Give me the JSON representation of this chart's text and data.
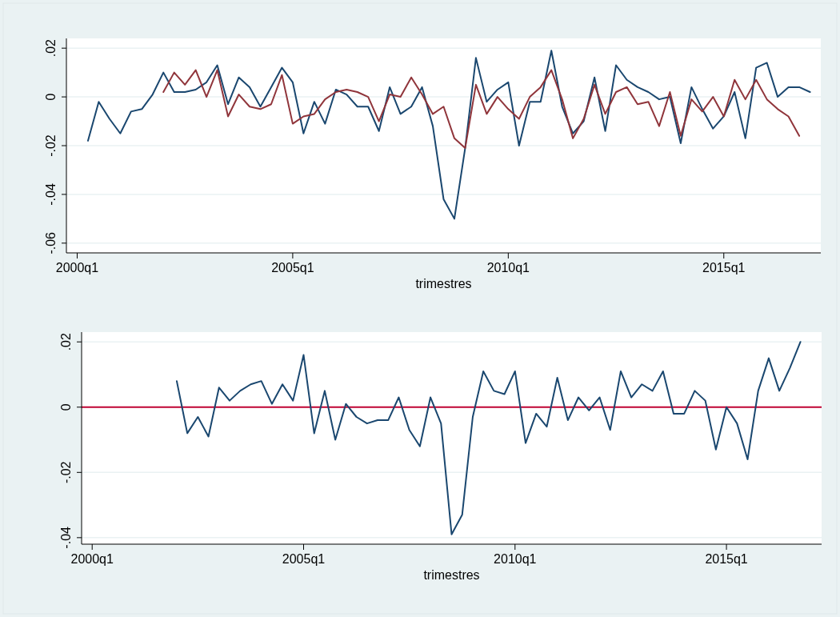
{
  "chart_data": [
    {
      "type": "line",
      "xlabel": "trimestres",
      "grid": "y",
      "categories": [
        "2000q1",
        null,
        null,
        null,
        null,
        null,
        null,
        null,
        null,
        null,
        null,
        null,
        null,
        null,
        null,
        null,
        null,
        null,
        null,
        null,
        "2005q1",
        null,
        null,
        null,
        null,
        null,
        null,
        null,
        null,
        null,
        null,
        null,
        null,
        null,
        null,
        null,
        null,
        null,
        null,
        null,
        "2010q1",
        null,
        null,
        null,
        null,
        null,
        null,
        null,
        null,
        null,
        null,
        null,
        null,
        null,
        null,
        null,
        null,
        null,
        null,
        null,
        "2015q1",
        null,
        null,
        null,
        null,
        null,
        null,
        null,
        null
      ],
      "ylim": [
        -0.064,
        0.024
      ],
      "yticks": [
        {
          "value": -0.06,
          "label": "-.06"
        },
        {
          "value": -0.04,
          "label": "-.04"
        },
        {
          "value": -0.02,
          "label": "-.02"
        },
        {
          "value": 0,
          "label": "0"
        },
        {
          "value": 0.02,
          "label": ".02"
        }
      ],
      "series": [
        {
          "color": "#1a476f",
          "values": [
            null,
            -0.018,
            -0.002,
            -0.009,
            -0.015,
            -0.006,
            -0.005,
            0.001,
            0.01,
            0.002,
            0.002,
            0.003,
            0.006,
            0.013,
            -0.003,
            0.008,
            0.004,
            -0.004,
            0.004,
            0.012,
            0.006,
            -0.015,
            -0.002,
            -0.011,
            0.003,
            0.001,
            -0.004,
            -0.004,
            -0.014,
            0.004,
            -0.007,
            -0.004,
            0.004,
            -0.012,
            -0.042,
            -0.05,
            -0.021,
            0.016,
            -0.002,
            0.003,
            0.006,
            -0.02,
            -0.002,
            -0.002,
            0.019,
            -0.004,
            -0.015,
            -0.01,
            0.008,
            -0.014,
            0.013,
            0.007,
            0.004,
            0.002,
            -0.001,
            0.0,
            -0.019,
            0.004,
            -0.005,
            -0.013,
            -0.008,
            0.002,
            -0.017,
            0.012,
            0.014,
            0.0,
            0.004,
            0.004,
            0.002
          ]
        },
        {
          "color": "#90353b",
          "values": [
            null,
            null,
            null,
            null,
            null,
            null,
            null,
            null,
            0.002,
            0.01,
            0.005,
            0.011,
            0.0,
            0.011,
            -0.008,
            0.001,
            -0.004,
            -0.005,
            -0.003,
            0.009,
            -0.011,
            -0.008,
            -0.007,
            -0.001,
            0.002,
            0.003,
            0.002,
            0.0,
            -0.01,
            0.001,
            0.0,
            0.008,
            0.001,
            -0.007,
            -0.004,
            -0.017,
            -0.021,
            0.005,
            -0.007,
            0.0,
            -0.005,
            -0.009,
            0.0,
            0.004,
            0.011,
            -0.001,
            -0.017,
            -0.009,
            0.005,
            -0.007,
            0.002,
            0.004,
            -0.003,
            -0.002,
            -0.012,
            0.002,
            -0.016,
            -0.001,
            -0.006,
            0.0,
            -0.008,
            0.007,
            -0.001,
            0.007,
            -0.001,
            -0.005,
            -0.008,
            -0.016,
            null
          ]
        }
      ]
    },
    {
      "type": "line",
      "xlabel": "trimestres",
      "grid": "y",
      "categories": [
        "2000q1",
        null,
        null,
        null,
        null,
        null,
        null,
        null,
        null,
        null,
        null,
        null,
        null,
        null,
        null,
        null,
        null,
        null,
        null,
        null,
        "2005q1",
        null,
        null,
        null,
        null,
        null,
        null,
        null,
        null,
        null,
        null,
        null,
        null,
        null,
        null,
        null,
        null,
        null,
        null,
        null,
        "2010q1",
        null,
        null,
        null,
        null,
        null,
        null,
        null,
        null,
        null,
        null,
        null,
        null,
        null,
        null,
        null,
        null,
        null,
        null,
        null,
        "2015q1",
        null,
        null,
        null,
        null,
        null,
        null,
        null,
        null
      ],
      "ylim": [
        -0.042,
        0.023
      ],
      "yticks": [
        {
          "value": -0.04,
          "label": "-.04"
        },
        {
          "value": -0.02,
          "label": "-.02"
        },
        {
          "value": 0,
          "label": "0"
        },
        {
          "value": 0.02,
          "label": ".02"
        }
      ],
      "ref_lines": [
        {
          "axis": "y",
          "value": 0,
          "color": "#c10534"
        }
      ],
      "series": [
        {
          "color": "#1a476f",
          "values": [
            null,
            null,
            null,
            null,
            null,
            null,
            null,
            null,
            0.008,
            -0.008,
            -0.003,
            -0.009,
            0.006,
            0.002,
            0.005,
            0.007,
            0.008,
            0.001,
            0.007,
            0.002,
            0.016,
            -0.008,
            0.005,
            -0.01,
            0.001,
            -0.003,
            -0.005,
            -0.004,
            -0.004,
            0.003,
            -0.007,
            -0.012,
            0.003,
            -0.005,
            -0.039,
            -0.033,
            -0.003,
            0.011,
            0.005,
            0.004,
            0.011,
            -0.011,
            -0.002,
            -0.006,
            0.009,
            -0.004,
            0.003,
            -0.001,
            0.003,
            -0.007,
            0.011,
            0.003,
            0.007,
            0.005,
            0.011,
            -0.002,
            -0.002,
            0.005,
            0.002,
            -0.013,
            0.0,
            -0.005,
            -0.016,
            0.005,
            0.015,
            0.005,
            0.012,
            0.02,
            null
          ]
        }
      ]
    }
  ]
}
